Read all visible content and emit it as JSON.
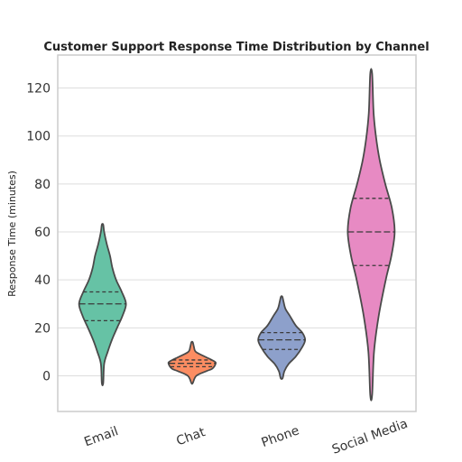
{
  "chart_data": {
    "type": "violin",
    "title": "Customer Support Response Time Distribution by Channel",
    "xlabel": "",
    "ylabel": "Response Time (minutes)",
    "ylim": [
      -15,
      135
    ],
    "yticks": [
      0,
      20,
      40,
      60,
      80,
      100,
      120
    ],
    "grid": true,
    "inner": "quartile",
    "categories": [
      "Email",
      "Chat",
      "Phone",
      "Social Media"
    ],
    "series": [
      {
        "category": "Email",
        "color": "#66c2a5",
        "min": -3,
        "max": 63,
        "q1": 23,
        "median": 30,
        "q3": 35,
        "profile": [
          [
            -3,
            0.03
          ],
          [
            5,
            0.07
          ],
          [
            10,
            0.22
          ],
          [
            15,
            0.4
          ],
          [
            20,
            0.62
          ],
          [
            25,
            0.85
          ],
          [
            30,
            1.0
          ],
          [
            35,
            0.82
          ],
          [
            40,
            0.58
          ],
          [
            45,
            0.42
          ],
          [
            50,
            0.32
          ],
          [
            55,
            0.18
          ],
          [
            60,
            0.07
          ],
          [
            63,
            0.03
          ]
        ]
      },
      {
        "category": "Chat",
        "color": "#fc8d62",
        "min": -3,
        "max": 14,
        "q1": 3.8,
        "median": 5.2,
        "q3": 6.6,
        "profile": [
          [
            -3,
            0.03
          ],
          [
            0,
            0.18
          ],
          [
            2,
            0.62
          ],
          [
            3,
            0.86
          ],
          [
            5,
            1.0
          ],
          [
            6,
            0.95
          ],
          [
            8,
            0.55
          ],
          [
            10,
            0.16
          ],
          [
            12,
            0.08
          ],
          [
            14,
            0.03
          ]
        ]
      },
      {
        "category": "Phone",
        "color": "#8da0cb",
        "min": -1,
        "max": 33,
        "q1": 11,
        "median": 15,
        "q3": 18,
        "profile": [
          [
            -1,
            0.04
          ],
          [
            2,
            0.12
          ],
          [
            5,
            0.3
          ],
          [
            8,
            0.6
          ],
          [
            12,
            0.88
          ],
          [
            15,
            1.0
          ],
          [
            18,
            0.88
          ],
          [
            21,
            0.6
          ],
          [
            25,
            0.35
          ],
          [
            28,
            0.16
          ],
          [
            31,
            0.08
          ],
          [
            33,
            0.03
          ]
        ]
      },
      {
        "category": "Social Media",
        "color": "#e78ac3",
        "min": -8,
        "max": 126,
        "q1": 46,
        "median": 60,
        "q3": 74,
        "profile": [
          [
            -8,
            0.04
          ],
          [
            10,
            0.12
          ],
          [
            25,
            0.32
          ],
          [
            40,
            0.62
          ],
          [
            50,
            0.86
          ],
          [
            60,
            1.0
          ],
          [
            70,
            0.88
          ],
          [
            80,
            0.6
          ],
          [
            90,
            0.36
          ],
          [
            100,
            0.2
          ],
          [
            110,
            0.1
          ],
          [
            126,
            0.04
          ]
        ]
      }
    ]
  }
}
